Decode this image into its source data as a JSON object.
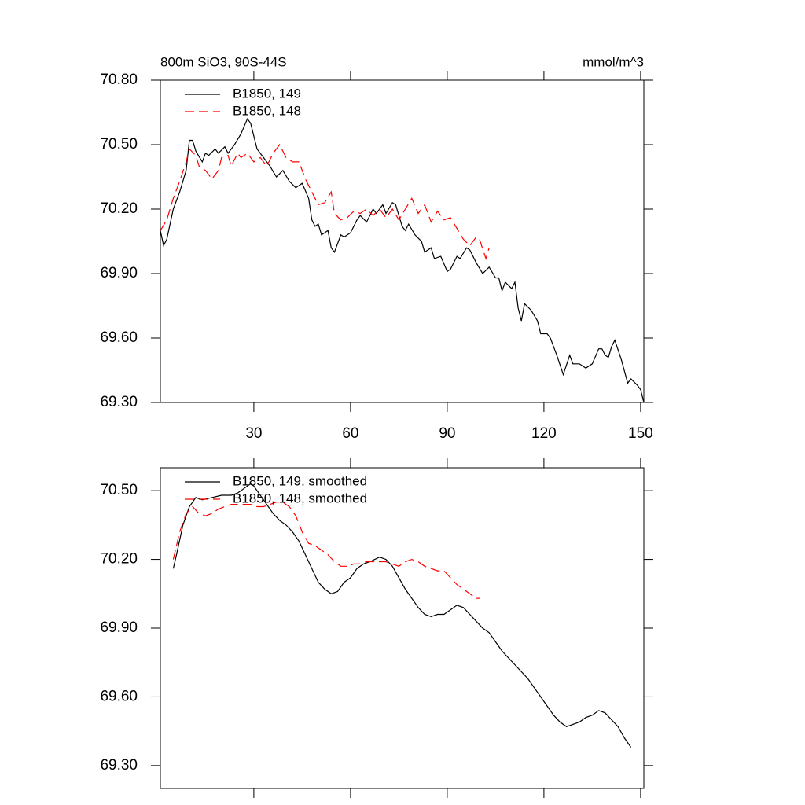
{
  "chart_data": [
    {
      "type": "line",
      "title": "800m SiO3, 90S-44S",
      "units": "mmol/m^3",
      "xlim": [
        1,
        151
      ],
      "xticks": [
        30,
        60,
        90,
        120,
        150
      ],
      "xtick_labels": true,
      "ylim": [
        69.3,
        70.8
      ],
      "yticks": [
        {
          "value": 69.3,
          "label": "69.30"
        },
        {
          "value": 69.6,
          "label": "69.60"
        },
        {
          "value": 69.9,
          "label": "69.90"
        },
        {
          "value": 70.2,
          "label": "70.20"
        },
        {
          "value": 70.5,
          "label": "70.50"
        },
        {
          "value": 70.8,
          "label": "70.80"
        }
      ],
      "series": [
        {
          "name": "B1850, 149",
          "color": "#000000",
          "dash": false,
          "x": [
            1,
            2,
            3,
            5,
            7,
            9,
            10,
            11,
            12,
            14,
            15,
            16,
            18,
            19,
            21,
            22,
            24,
            26,
            28,
            29,
            31,
            33,
            35,
            37,
            39,
            41,
            43,
            45,
            47,
            48,
            49,
            50,
            51,
            53,
            54,
            55,
            57,
            58,
            60,
            62,
            63,
            65,
            67,
            68,
            70,
            71,
            73,
            74,
            76,
            77,
            78,
            80,
            82,
            83,
            85,
            86,
            88,
            90,
            91,
            93,
            94,
            96,
            97,
            99,
            101,
            103,
            105,
            106,
            107,
            108,
            110,
            111,
            112,
            113,
            114,
            116,
            118,
            119,
            121,
            122,
            124,
            126,
            128,
            129,
            131,
            133,
            135,
            137,
            138,
            139,
            140,
            141,
            142,
            144,
            146,
            147,
            149,
            150,
            151
          ],
          "values": [
            70.1,
            70.03,
            70.06,
            70.2,
            70.28,
            70.38,
            70.52,
            70.52,
            70.47,
            70.42,
            70.46,
            70.45,
            70.48,
            70.46,
            70.49,
            70.46,
            70.5,
            70.55,
            70.62,
            70.6,
            70.48,
            70.44,
            70.4,
            70.35,
            70.38,
            70.33,
            70.3,
            70.32,
            70.25,
            70.15,
            70.12,
            70.13,
            70.08,
            70.1,
            70.02,
            70.0,
            70.08,
            70.07,
            70.09,
            70.15,
            70.17,
            70.14,
            70.2,
            70.18,
            70.22,
            70.18,
            70.23,
            70.22,
            70.12,
            70.1,
            70.13,
            70.08,
            70.05,
            70.0,
            70.02,
            69.97,
            69.98,
            69.91,
            69.92,
            69.98,
            69.97,
            70.02,
            70.01,
            69.95,
            69.9,
            69.93,
            69.88,
            69.88,
            69.82,
            69.86,
            69.83,
            69.86,
            69.74,
            69.68,
            69.76,
            69.73,
            69.68,
            69.62,
            69.62,
            69.6,
            69.52,
            69.43,
            69.52,
            69.48,
            69.48,
            69.46,
            69.48,
            69.55,
            69.55,
            69.52,
            69.51,
            69.56,
            69.59,
            69.5,
            69.39,
            69.41,
            69.38,
            69.36,
            69.3
          ]
        },
        {
          "name": "B1850, 148",
          "color": "#ff0000",
          "dash": true,
          "x": [
            1,
            3,
            5,
            7,
            9,
            10,
            12,
            13,
            15,
            17,
            19,
            20,
            22,
            23,
            25,
            26,
            28,
            30,
            32,
            34,
            36,
            38,
            40,
            42,
            44,
            46,
            48,
            50,
            52,
            54,
            55,
            57,
            59,
            61,
            63,
            65,
            67,
            69,
            71,
            73,
            75,
            77,
            79,
            81,
            83,
            85,
            87,
            89,
            91,
            93,
            95,
            97,
            99,
            100,
            102,
            103
          ],
          "values": [
            70.1,
            70.15,
            70.25,
            70.33,
            70.42,
            70.48,
            70.45,
            70.4,
            70.38,
            70.34,
            70.38,
            70.44,
            70.45,
            70.4,
            70.46,
            70.44,
            70.46,
            70.42,
            70.44,
            70.4,
            70.46,
            70.5,
            70.44,
            70.42,
            70.42,
            70.34,
            70.28,
            70.22,
            70.23,
            70.28,
            70.18,
            70.15,
            70.16,
            70.19,
            70.18,
            70.2,
            70.17,
            70.2,
            70.16,
            70.2,
            70.15,
            70.2,
            70.25,
            70.18,
            70.22,
            70.14,
            70.19,
            70.15,
            70.16,
            70.11,
            70.06,
            70.03,
            70.07,
            70.06,
            69.97,
            70.02
          ]
        }
      ]
    },
    {
      "type": "line",
      "xlim": [
        1,
        151
      ],
      "xticks": [
        30,
        60,
        90,
        120,
        150
      ],
      "xtick_labels": false,
      "ylim": [
        69.2,
        70.6
      ],
      "yticks": [
        {
          "value": 69.3,
          "label": "69.30"
        },
        {
          "value": 69.6,
          "label": "69.60"
        },
        {
          "value": 69.9,
          "label": "69.90"
        },
        {
          "value": 70.2,
          "label": "70.20"
        },
        {
          "value": 70.5,
          "label": "70.50"
        }
      ],
      "series": [
        {
          "name": "B1850, 149, smoothed",
          "color": "#000000",
          "dash": false,
          "x": [
            5,
            6,
            8,
            10,
            12,
            14,
            17,
            20,
            23,
            25,
            27,
            29,
            30,
            32,
            34,
            36,
            38,
            40,
            42,
            44,
            46,
            48,
            50,
            52,
            54,
            56,
            58,
            60,
            62,
            64,
            66,
            69,
            71,
            73,
            75,
            77,
            79,
            81,
            83,
            85,
            87,
            89,
            91,
            93,
            95,
            97,
            99,
            101,
            103,
            105,
            107,
            109,
            111,
            113,
            115,
            117,
            119,
            121,
            123,
            125,
            127,
            129,
            131,
            133,
            135,
            137,
            139,
            141,
            143,
            145,
            147
          ],
          "values": [
            70.16,
            70.22,
            70.35,
            70.43,
            70.47,
            70.46,
            70.47,
            70.48,
            70.48,
            70.49,
            70.51,
            70.53,
            70.52,
            70.48,
            70.44,
            70.4,
            70.37,
            70.35,
            70.32,
            70.28,
            70.22,
            70.16,
            70.1,
            70.07,
            70.05,
            70.06,
            70.1,
            70.12,
            70.16,
            70.18,
            70.19,
            70.21,
            70.2,
            70.17,
            70.12,
            70.07,
            70.03,
            69.99,
            69.96,
            69.95,
            69.96,
            69.96,
            69.98,
            70.0,
            69.99,
            69.96,
            69.93,
            69.9,
            69.88,
            69.84,
            69.8,
            69.77,
            69.74,
            69.71,
            69.68,
            69.64,
            69.6,
            69.56,
            69.52,
            69.49,
            69.47,
            69.48,
            69.49,
            69.51,
            69.52,
            69.54,
            69.53,
            69.5,
            69.47,
            69.42,
            69.38
          ]
        },
        {
          "name": "B1850, 148, smoothed",
          "color": "#ff0000",
          "dash": true,
          "x": [
            5,
            7,
            9,
            11,
            13,
            15,
            17,
            19,
            21,
            23,
            25,
            27,
            29,
            31,
            33,
            35,
            37,
            39,
            41,
            43,
            45,
            47,
            49,
            51,
            53,
            55,
            57,
            59,
            61,
            63,
            65,
            67,
            69,
            71,
            73,
            75,
            77,
            79,
            81,
            83,
            85,
            87,
            89,
            91,
            93,
            95,
            97,
            99,
            100
          ],
          "values": [
            70.2,
            70.32,
            70.4,
            70.43,
            70.4,
            70.39,
            70.4,
            70.42,
            70.43,
            70.44,
            70.44,
            70.44,
            70.44,
            70.43,
            70.43,
            70.44,
            70.45,
            70.45,
            70.43,
            70.39,
            70.32,
            70.27,
            70.26,
            70.24,
            70.22,
            70.19,
            70.17,
            70.17,
            70.18,
            70.18,
            70.19,
            70.19,
            70.19,
            70.19,
            70.18,
            70.17,
            70.19,
            70.2,
            70.19,
            70.17,
            70.16,
            70.15,
            70.15,
            70.12,
            70.09,
            70.07,
            70.05,
            70.03,
            70.03
          ]
        }
      ]
    }
  ]
}
